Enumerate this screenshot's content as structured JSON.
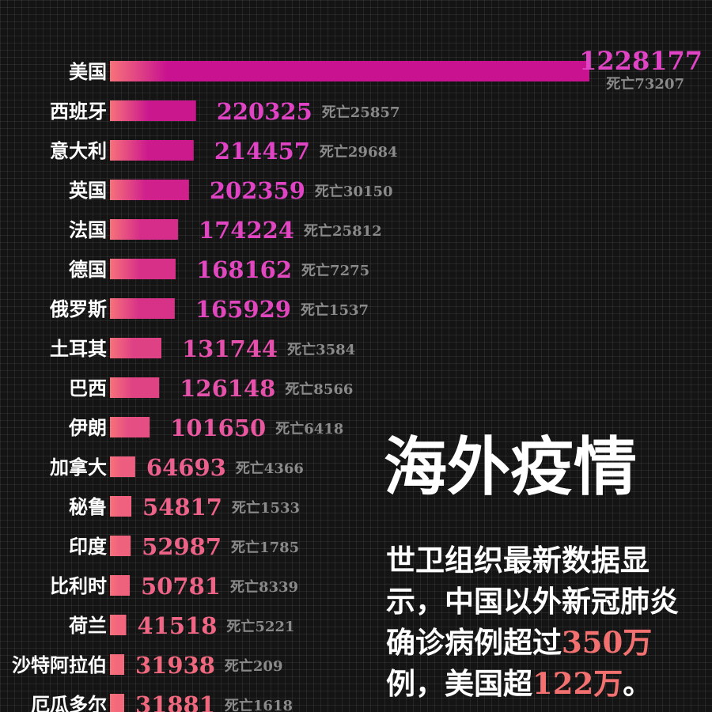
{
  "chart_data": {
    "type": "bar",
    "orientation": "horizontal",
    "categories": [
      "美国",
      "西班牙",
      "意大利",
      "英国",
      "法国",
      "德国",
      "俄罗斯",
      "土耳其",
      "巴西",
      "伊朗",
      "加拿大",
      "秘鲁",
      "印度",
      "比利时",
      "荷兰",
      "沙特阿拉伯",
      "厄瓜多尔"
    ],
    "series": [
      {
        "values": [
          1228177,
          220325,
          214457,
          202359,
          174224,
          168162,
          165929,
          131744,
          126148,
          101650,
          64693,
          54817,
          52987,
          50781,
          41518,
          31938,
          31881
        ]
      }
    ],
    "death_prefix": "死亡",
    "deaths": [
      73207,
      25857,
      29684,
      30150,
      25812,
      7275,
      1537,
      3584,
      8566,
      6418,
      4366,
      1533,
      1785,
      8339,
      5221,
      209,
      1618
    ],
    "grid": true,
    "colors": {
      "bar_high": "#c8128f",
      "bar_low": "#f7727a",
      "value_high": "#e044c4",
      "value_low": "#f2706f",
      "death_text": "#8a8a8a",
      "label_text": "#ffffff"
    }
  },
  "headline": "海外疫情",
  "description": {
    "part1": "世卫组织最新数据显示，中国以外新冠肺炎确诊病例超过",
    "hl1": "350万",
    "part2": "例，美国超",
    "hl2": "122万",
    "part3": "。"
  }
}
